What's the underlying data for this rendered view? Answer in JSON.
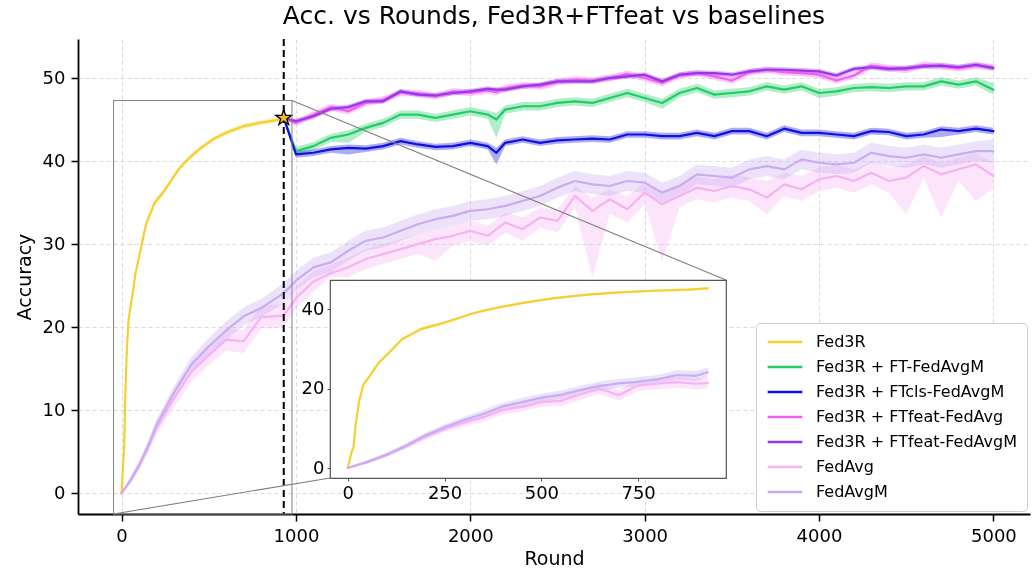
{
  "chart_data": [
    {
      "type": "line",
      "title": "Acc. vs Rounds, Fed3R+FTfeat vs baselines",
      "xlabel": "Round",
      "ylabel": "Accuracy",
      "xlim": [
        -250,
        5210
      ],
      "ylim": [
        -2.5,
        54.7
      ],
      "xticks": [
        0,
        1000,
        2000,
        3000,
        4000,
        5000
      ],
      "yticks": [
        0,
        10,
        20,
        30,
        40,
        50
      ],
      "grid": true,
      "legend": "bottom right",
      "ref_lines": [
        {
          "axis": "x",
          "value": 930,
          "color": "#000000",
          "line_style": "dashed"
        }
      ],
      "series": [
        {
          "name": "Fed3R",
          "color": "#f5d033",
          "x": [
            0,
            10,
            15,
            20,
            30,
            40,
            60,
            80,
            110,
            140,
            190,
            230,
            270,
            320,
            360,
            400,
            450,
            490,
            530,
            570,
            620,
            700,
            790,
            880,
            930
          ],
          "values": [
            0,
            4.1,
            5.4,
            10.8,
            17.2,
            20.9,
            23.6,
            26.5,
            29.4,
            32.4,
            35.0,
            36.0,
            37.2,
            38.8,
            39.8,
            40.6,
            41.5,
            42.1,
            42.7,
            43.1,
            43.6,
            44.2,
            44.6,
            44.9,
            45.2
          ],
          "lower": [
            0,
            3.6,
            4.9,
            10.2,
            16.6,
            20.4,
            23.1,
            26.1,
            29.0,
            32.0,
            34.6,
            35.6,
            36.9,
            38.5,
            39.5,
            40.3,
            41.2,
            41.8,
            42.4,
            42.8,
            43.3,
            43.9,
            44.3,
            44.6,
            44.9
          ],
          "upper": [
            0,
            4.6,
            5.9,
            11.4,
            17.8,
            21.4,
            24.1,
            26.9,
            29.8,
            32.8,
            35.4,
            36.4,
            37.5,
            39.1,
            40.1,
            40.9,
            41.8,
            42.4,
            43.0,
            43.4,
            43.9,
            44.5,
            44.9,
            45.2,
            45.5
          ]
        },
        {
          "name": "Fed3R + FT-FedAvgM",
          "color": "#22cc66",
          "x": [
            930,
            1000,
            1100,
            1200,
            1300,
            1400,
            1500,
            1600,
            1700,
            1800,
            1900,
            2000,
            2100,
            2150,
            2200,
            2300,
            2400,
            2500,
            2600,
            2700,
            2800,
            2900,
            3000,
            3100,
            3200,
            3300,
            3400,
            3500,
            3600,
            3700,
            3800,
            3900,
            4000,
            4100,
            4200,
            4300,
            4400,
            4500,
            4600,
            4700,
            4800,
            4900,
            5000
          ],
          "values": [
            45.2,
            41.2,
            41.8,
            42.8,
            43.2,
            44.0,
            44.6,
            45.6,
            45.6,
            45.2,
            45.6,
            46.0,
            45.6,
            45.0,
            46.2,
            46.6,
            46.6,
            47.0,
            47.2,
            47.0,
            47.6,
            48.2,
            47.6,
            47.0,
            48.2,
            48.8,
            48.0,
            48.2,
            48.4,
            49.0,
            48.6,
            49.0,
            48.2,
            48.4,
            48.8,
            48.9,
            48.8,
            49.0,
            49.0,
            49.6,
            49.2,
            49.6,
            48.6
          ],
          "lower": [
            45.2,
            40.7,
            41.3,
            42.3,
            42.2,
            43.5,
            44.1,
            45.1,
            45.1,
            44.7,
            45.1,
            45.5,
            45.1,
            42.8,
            45.7,
            46.1,
            46.1,
            46.5,
            46.7,
            46.5,
            47.1,
            47.7,
            47.1,
            46.3,
            47.7,
            48.3,
            47.5,
            47.7,
            47.9,
            48.5,
            48.1,
            48.5,
            47.6,
            47.9,
            48.3,
            48.4,
            48.3,
            48.5,
            48.5,
            49.1,
            48.7,
            49.1,
            48.0
          ],
          "upper": [
            45.2,
            41.7,
            42.3,
            43.3,
            43.7,
            44.5,
            45.1,
            46.1,
            46.1,
            45.7,
            46.1,
            46.5,
            46.1,
            45.8,
            46.7,
            47.1,
            47.1,
            47.5,
            47.7,
            47.5,
            48.1,
            48.7,
            48.1,
            47.5,
            48.7,
            49.3,
            48.5,
            48.7,
            48.9,
            49.5,
            49.1,
            49.5,
            48.7,
            48.9,
            49.3,
            49.4,
            49.3,
            49.5,
            49.5,
            50.1,
            49.7,
            50.1,
            49.4
          ]
        },
        {
          "name": "Fed3R + FTcls-FedAvgM",
          "color": "#1010e0",
          "x": [
            930,
            1000,
            1100,
            1200,
            1300,
            1400,
            1500,
            1600,
            1700,
            1800,
            1900,
            2000,
            2100,
            2150,
            2200,
            2300,
            2400,
            2500,
            2600,
            2700,
            2800,
            2900,
            3000,
            3100,
            3200,
            3300,
            3400,
            3500,
            3600,
            3700,
            3800,
            3900,
            4000,
            4100,
            4200,
            4300,
            4400,
            4500,
            4600,
            4700,
            4800,
            4900,
            5000
          ],
          "values": [
            45.2,
            40.8,
            41.0,
            41.4,
            41.6,
            41.5,
            41.8,
            42.4,
            42.0,
            41.7,
            41.8,
            42.2,
            41.8,
            41.0,
            42.2,
            42.6,
            42.2,
            42.5,
            42.6,
            42.7,
            42.6,
            43.2,
            43.2,
            43.0,
            43.0,
            43.4,
            43.0,
            43.6,
            43.6,
            43.0,
            43.9,
            43.4,
            43.4,
            43.2,
            43.0,
            43.6,
            43.5,
            43.0,
            43.2,
            43.8,
            43.6,
            43.9,
            43.6
          ],
          "lower": [
            45.2,
            40.4,
            40.6,
            41.0,
            40.8,
            41.1,
            41.4,
            42.0,
            41.6,
            41.3,
            41.4,
            41.8,
            41.4,
            39.6,
            41.8,
            42.2,
            41.8,
            42.1,
            42.2,
            42.3,
            42.2,
            42.8,
            42.8,
            42.6,
            42.6,
            43.0,
            42.6,
            43.2,
            43.2,
            42.6,
            43.5,
            43.0,
            43.0,
            42.8,
            42.6,
            43.2,
            43.1,
            42.6,
            42.8,
            42.9,
            43.2,
            43.5,
            43.2
          ],
          "upper": [
            45.2,
            41.2,
            41.4,
            41.8,
            42.0,
            41.9,
            42.2,
            42.8,
            42.4,
            42.1,
            42.2,
            42.6,
            42.2,
            41.6,
            42.6,
            43.0,
            42.6,
            42.9,
            43.0,
            43.1,
            43.0,
            43.6,
            43.6,
            43.4,
            43.4,
            43.8,
            43.4,
            44.0,
            44.0,
            43.4,
            44.3,
            43.8,
            43.8,
            43.6,
            43.4,
            44.0,
            43.9,
            43.4,
            43.6,
            44.2,
            44.0,
            44.3,
            44.0
          ]
        },
        {
          "name": "Fed3R + FTfeat-FedAvg",
          "color": "#f060f0",
          "x": [
            930,
            1000,
            1100,
            1200,
            1300,
            1400,
            1500,
            1600,
            1700,
            1800,
            1900,
            2000,
            2100,
            2150,
            2200,
            2300,
            2400,
            2500,
            2600,
            2700,
            2800,
            2900,
            3000,
            3100,
            3200,
            3300,
            3400,
            3500,
            3600,
            3700,
            3800,
            3900,
            4000,
            4100,
            4200,
            4300,
            4400,
            4500,
            4600,
            4700,
            4800,
            4900,
            5000
          ],
          "values": [
            45.2,
            44.6,
            45.6,
            46.5,
            46.0,
            47.0,
            47.4,
            48.2,
            48.2,
            47.8,
            48.4,
            48.2,
            48.5,
            48.3,
            48.8,
            49.1,
            49.0,
            49.5,
            49.8,
            49.7,
            50.0,
            50.5,
            50.0,
            49.4,
            50.3,
            50.6,
            50.2,
            49.7,
            50.7,
            51.0,
            50.7,
            50.6,
            50.4,
            49.7,
            50.3,
            51.5,
            51.2,
            51.0,
            51.6,
            51.4,
            51.2,
            51.5,
            51.3
          ],
          "lower": [
            45.2,
            44.2,
            45.2,
            46.1,
            45.6,
            46.6,
            47.0,
            47.8,
            47.8,
            47.4,
            48.0,
            47.8,
            48.1,
            47.9,
            48.4,
            48.7,
            48.6,
            49.1,
            49.4,
            49.3,
            49.6,
            50.1,
            49.6,
            49.0,
            49.9,
            50.2,
            49.8,
            49.3,
            50.3,
            50.6,
            50.3,
            50.2,
            50.0,
            49.3,
            49.9,
            51.1,
            50.8,
            50.6,
            51.2,
            51.0,
            50.8,
            51.1,
            50.9
          ],
          "upper": [
            45.2,
            45.0,
            46.0,
            46.9,
            46.4,
            47.4,
            47.8,
            48.6,
            48.6,
            48.2,
            48.8,
            48.6,
            48.9,
            48.7,
            49.2,
            49.5,
            49.4,
            49.9,
            50.2,
            50.1,
            50.4,
            50.9,
            50.4,
            49.8,
            50.7,
            51.0,
            50.6,
            50.1,
            51.1,
            51.4,
            51.1,
            51.0,
            50.8,
            50.1,
            50.7,
            51.9,
            51.6,
            51.4,
            52.0,
            51.8,
            51.6,
            51.9,
            51.7
          ]
        },
        {
          "name": "Fed3R + FTfeat-FedAvgM",
          "color": "#9a35e8",
          "x": [
            930,
            1000,
            1100,
            1200,
            1300,
            1400,
            1500,
            1600,
            1700,
            1800,
            1900,
            2000,
            2100,
            2150,
            2200,
            2300,
            2400,
            2500,
            2600,
            2700,
            2800,
            2900,
            3000,
            3100,
            3200,
            3300,
            3400,
            3500,
            3600,
            3700,
            3800,
            3900,
            4000,
            4100,
            4200,
            4300,
            4400,
            4500,
            4600,
            4700,
            4800,
            4900,
            5000
          ],
          "values": [
            45.2,
            44.8,
            45.4,
            46.3,
            46.5,
            47.2,
            47.2,
            48.4,
            48.0,
            47.9,
            48.2,
            48.4,
            48.7,
            48.6,
            48.6,
            49.0,
            49.2,
            49.6,
            49.6,
            49.6,
            50.0,
            50.2,
            50.4,
            49.6,
            50.4,
            50.6,
            50.6,
            50.4,
            50.8,
            51.0,
            51.0,
            50.9,
            50.8,
            50.3,
            51.1,
            51.3,
            51.1,
            51.2,
            51.4,
            51.5,
            51.3,
            51.6,
            51.2
          ],
          "lower": [
            45.2,
            44.5,
            45.1,
            46.0,
            46.2,
            46.9,
            46.9,
            48.1,
            47.7,
            47.6,
            47.9,
            48.1,
            48.4,
            48.3,
            48.3,
            48.7,
            48.9,
            49.3,
            49.3,
            49.3,
            49.7,
            49.9,
            50.1,
            49.3,
            50.1,
            50.3,
            50.3,
            50.1,
            50.5,
            50.7,
            50.7,
            50.6,
            50.5,
            50.0,
            50.8,
            51.0,
            50.8,
            50.9,
            51.1,
            51.2,
            51.0,
            51.3,
            50.9
          ],
          "upper": [
            45.2,
            45.1,
            45.7,
            46.6,
            46.8,
            47.5,
            47.5,
            48.7,
            48.3,
            48.2,
            48.5,
            48.7,
            49.0,
            48.9,
            48.9,
            49.3,
            49.5,
            49.9,
            49.9,
            49.9,
            50.3,
            50.5,
            50.7,
            49.9,
            50.7,
            50.9,
            50.9,
            50.7,
            51.1,
            51.3,
            51.3,
            51.2,
            51.1,
            50.6,
            51.4,
            51.6,
            51.4,
            51.5,
            51.7,
            51.8,
            51.6,
            51.9,
            51.5
          ]
        },
        {
          "name": "FedAvg",
          "color": "#f5b3f3",
          "x": [
            0,
            50,
            100,
            150,
            200,
            300,
            400,
            500,
            600,
            700,
            800,
            930,
            1000,
            1100,
            1200,
            1300,
            1400,
            1500,
            1600,
            1700,
            1800,
            1900,
            2000,
            2100,
            2200,
            2300,
            2400,
            2500,
            2600,
            2700,
            2800,
            2900,
            3000,
            3100,
            3200,
            3300,
            3400,
            3500,
            3600,
            3700,
            3800,
            3900,
            4000,
            4100,
            4200,
            4300,
            4400,
            4500,
            4600,
            4700,
            4800,
            4900,
            5000
          ],
          "values": [
            0,
            1.6,
            3.4,
            5.4,
            7.8,
            11.4,
            14.6,
            16.6,
            18.5,
            18.3,
            21.2,
            21.4,
            23.5,
            25.5,
            26.5,
            27.2,
            28.2,
            28.8,
            29.4,
            30.0,
            30.6,
            31.0,
            31.6,
            31.0,
            32.6,
            31.8,
            33.2,
            32.8,
            35.8,
            34.0,
            35.4,
            34.2,
            36.2,
            34.8,
            35.8,
            36.8,
            36.4,
            37.0,
            36.6,
            35.6,
            37.2,
            36.6,
            37.8,
            38.2,
            37.6,
            38.6,
            37.6,
            38.0,
            39.4,
            38.4,
            39.0,
            39.6,
            38.2
          ],
          "lower": [
            0,
            1.2,
            2.9,
            4.8,
            7.1,
            10.4,
            13.4,
            15.4,
            17.2,
            16.9,
            19.8,
            20.0,
            22.2,
            24.3,
            26.0,
            26.0,
            27.0,
            27.6,
            28.2,
            28.8,
            28.0,
            29.8,
            30.4,
            29.8,
            31.4,
            30.4,
            32.0,
            31.4,
            34.4,
            26.0,
            33.6,
            32.6,
            34.8,
            28.0,
            34.4,
            35.4,
            35.0,
            35.6,
            35.2,
            33.6,
            35.8,
            35.2,
            36.4,
            36.8,
            36.2,
            37.2,
            36.2,
            33.6,
            38.0,
            33.2,
            37.6,
            35.2,
            36.8
          ],
          "upper": [
            0,
            2.0,
            3.9,
            6.0,
            8.5,
            12.4,
            15.8,
            17.8,
            19.8,
            19.7,
            22.6,
            22.8,
            24.8,
            26.7,
            27.5,
            28.4,
            29.4,
            30.0,
            30.6,
            31.2,
            31.8,
            32.2,
            32.8,
            32.2,
            33.8,
            33.2,
            34.4,
            34.2,
            37.0,
            35.6,
            36.6,
            35.8,
            37.4,
            36.4,
            37.2,
            38.2,
            37.8,
            38.4,
            38.0,
            37.6,
            38.6,
            38.2,
            39.2,
            39.6,
            39.0,
            40.0,
            39.2,
            39.6,
            40.6,
            39.8,
            40.4,
            41.0,
            39.8
          ]
        },
        {
          "name": "FedAvgM",
          "color": "#c9adf2",
          "x": [
            0,
            50,
            100,
            150,
            200,
            300,
            400,
            500,
            600,
            700,
            800,
            930,
            1000,
            1100,
            1200,
            1300,
            1400,
            1500,
            1600,
            1700,
            1800,
            1900,
            2000,
            2100,
            2200,
            2300,
            2400,
            2500,
            2600,
            2700,
            2800,
            2900,
            3000,
            3100,
            3200,
            3300,
            3400,
            3500,
            3600,
            3700,
            3800,
            3900,
            4000,
            4100,
            4200,
            4300,
            4400,
            4500,
            4600,
            4700,
            4800,
            4900,
            5000
          ],
          "values": [
            0,
            1.5,
            3.3,
            5.6,
            8.2,
            12.1,
            15.5,
            17.7,
            19.6,
            21.3,
            22.3,
            24.1,
            25.6,
            27.2,
            27.8,
            29.2,
            30.4,
            30.8,
            31.6,
            32.4,
            33.0,
            33.4,
            34.0,
            34.2,
            34.6,
            35.2,
            35.8,
            36.8,
            37.6,
            37.2,
            37.0,
            37.6,
            37.4,
            36.2,
            37.0,
            38.4,
            38.2,
            38.0,
            39.0,
            39.4,
            39.0,
            40.2,
            39.8,
            39.6,
            39.8,
            41.0,
            40.6,
            40.4,
            40.8,
            40.4,
            40.8,
            41.2,
            41.2
          ],
          "lower": [
            0,
            1.1,
            2.8,
            5.0,
            7.5,
            11.3,
            14.6,
            16.7,
            18.5,
            20.2,
            21.2,
            22.9,
            24.4,
            26.0,
            26.6,
            28.0,
            29.2,
            29.6,
            30.4,
            31.2,
            31.8,
            32.2,
            32.8,
            33.0,
            33.4,
            34.0,
            34.6,
            35.6,
            36.4,
            36.0,
            35.8,
            36.4,
            36.2,
            35.0,
            35.8,
            37.2,
            37.0,
            36.8,
            37.8,
            38.2,
            37.8,
            39.0,
            38.6,
            38.4,
            38.6,
            39.8,
            39.4,
            39.2,
            39.6,
            39.2,
            39.6,
            40.0,
            39.8
          ],
          "upper": [
            0,
            1.9,
            3.8,
            6.2,
            8.9,
            12.9,
            16.4,
            18.7,
            20.7,
            22.4,
            23.4,
            25.3,
            26.8,
            28.4,
            29.0,
            30.4,
            31.6,
            32.0,
            32.8,
            33.6,
            34.2,
            34.6,
            35.2,
            35.4,
            35.8,
            36.4,
            37.0,
            38.0,
            38.8,
            38.4,
            38.2,
            38.8,
            38.6,
            37.4,
            38.2,
            39.6,
            39.4,
            39.2,
            40.2,
            40.6,
            40.2,
            41.4,
            41.0,
            40.8,
            41.0,
            42.2,
            41.8,
            41.6,
            42.0,
            41.6,
            42.0,
            42.4,
            42.6
          ]
        },
        {
          "type": "scatter",
          "marker": "star",
          "color": "#f0c020",
          "x": [
            930
          ],
          "values": [
            45.2
          ]
        }
      ]
    },
    {
      "type": "line",
      "xlim": [
        -46,
        977
      ],
      "ylim": [
        -2.5,
        47.3
      ],
      "xticks": [
        0,
        250,
        500,
        750
      ],
      "yticks": [
        0,
        20,
        40
      ],
      "series": [
        {
          "color": "#f5d033",
          "x": [
            0,
            10,
            15,
            20,
            30,
            40,
            60,
            80,
            110,
            140,
            190,
            230,
            270,
            320,
            360,
            400,
            450,
            490,
            530,
            570,
            620,
            700,
            790,
            880,
            930
          ],
          "values": [
            0,
            4.1,
            5.4,
            10.8,
            17.2,
            20.9,
            23.6,
            26.5,
            29.4,
            32.4,
            35.0,
            36.0,
            37.2,
            38.8,
            39.8,
            40.6,
            41.5,
            42.1,
            42.7,
            43.1,
            43.6,
            44.2,
            44.6,
            44.9,
            45.2
          ],
          "lower": [
            0,
            3.6,
            4.9,
            10.2,
            16.6,
            20.4,
            23.1,
            26.1,
            29.0,
            32.0,
            34.6,
            35.6,
            36.9,
            38.5,
            39.5,
            40.3,
            41.2,
            41.8,
            42.4,
            42.8,
            43.3,
            43.9,
            44.3,
            44.6,
            44.9
          ],
          "upper": [
            0,
            4.6,
            5.9,
            11.4,
            17.8,
            21.4,
            24.1,
            26.9,
            29.8,
            32.8,
            35.4,
            36.4,
            37.5,
            39.1,
            40.1,
            40.9,
            41.8,
            42.4,
            43.0,
            43.4,
            43.9,
            44.5,
            44.9,
            45.2,
            45.5
          ]
        },
        {
          "color": "#f5b3f3",
          "x": [
            0,
            50,
            100,
            150,
            200,
            250,
            300,
            350,
            400,
            450,
            500,
            550,
            600,
            650,
            700,
            750,
            800,
            850,
            900,
            930
          ],
          "values": [
            0,
            1.6,
            3.4,
            5.4,
            7.8,
            9.9,
            11.4,
            12.8,
            14.6,
            15.4,
            16.6,
            16.9,
            18.5,
            20.0,
            18.3,
            20.8,
            21.2,
            21.6,
            21.2,
            21.4
          ],
          "lower": [
            0,
            1.2,
            2.9,
            4.8,
            7.1,
            9.1,
            10.4,
            11.7,
            13.4,
            14.2,
            15.4,
            15.6,
            17.2,
            18.6,
            16.9,
            19.4,
            19.8,
            20.2,
            19.8,
            20.0
          ],
          "upper": [
            0,
            2.0,
            3.9,
            6.0,
            8.5,
            10.7,
            12.4,
            13.9,
            15.8,
            16.6,
            17.8,
            18.2,
            19.8,
            21.4,
            19.7,
            22.2,
            22.6,
            23.0,
            22.6,
            22.8
          ]
        },
        {
          "color": "#c9adf2",
          "x": [
            0,
            50,
            100,
            150,
            200,
            250,
            300,
            350,
            400,
            450,
            500,
            550,
            600,
            650,
            700,
            750,
            800,
            850,
            900,
            930
          ],
          "values": [
            0,
            1.5,
            3.3,
            5.6,
            8.2,
            10.2,
            12.1,
            13.6,
            15.5,
            16.6,
            17.7,
            18.4,
            19.6,
            20.6,
            21.3,
            21.7,
            22.3,
            23.4,
            23.2,
            24.1
          ],
          "lower": [
            0,
            1.1,
            2.8,
            5.0,
            7.5,
            9.4,
            11.3,
            12.6,
            14.6,
            15.5,
            16.7,
            17.3,
            18.5,
            19.4,
            20.2,
            20.5,
            21.2,
            22.2,
            21.9,
            22.9
          ],
          "upper": [
            0,
            1.9,
            3.8,
            6.2,
            8.9,
            11.0,
            12.9,
            14.6,
            16.4,
            17.7,
            18.7,
            19.5,
            20.7,
            21.8,
            22.4,
            22.9,
            23.4,
            24.6,
            24.5,
            25.3
          ]
        }
      ]
    }
  ]
}
